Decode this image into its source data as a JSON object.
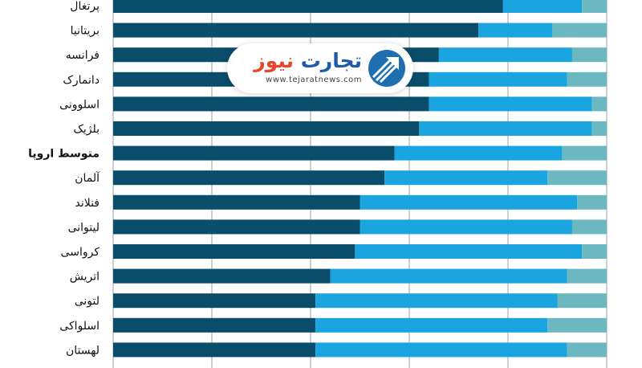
{
  "chart_data": {
    "type": "bar",
    "orientation": "horizontal",
    "stacked": true,
    "categories": [
      "پرتغال",
      "بریتانیا",
      "فرانسه",
      "دانمارک",
      "اسلوونی",
      "بلژیک",
      "متوسط اروپا",
      "آلمان",
      "فنلاند",
      "لیتوانی",
      "کرواسی",
      "اتریش",
      "لتونی",
      "اسلواکی",
      "لهستان"
    ],
    "highlight_category": "متوسط اروپا",
    "xlim": [
      0,
      100
    ],
    "grid": true,
    "series": [
      {
        "values": [
          79,
          74,
          66,
          64,
          64,
          62,
          57,
          55,
          50,
          50,
          49,
          44,
          41,
          41,
          41
        ],
        "color": "#0a4d6b"
      },
      {
        "values": [
          16,
          15,
          27,
          28,
          33,
          35,
          34,
          33,
          44,
          43,
          46,
          48,
          49,
          47,
          51
        ],
        "color": "#1ba5e0"
      },
      {
        "values": [
          5,
          11,
          7,
          8,
          3,
          3,
          9,
          12,
          6,
          7,
          5,
          8,
          10,
          12,
          8
        ],
        "color": "#6cb8c0"
      }
    ]
  },
  "logo": {
    "text_primary": "تجارت",
    "text_accent": "نیوز",
    "url": "www.tejaratnews.com"
  }
}
